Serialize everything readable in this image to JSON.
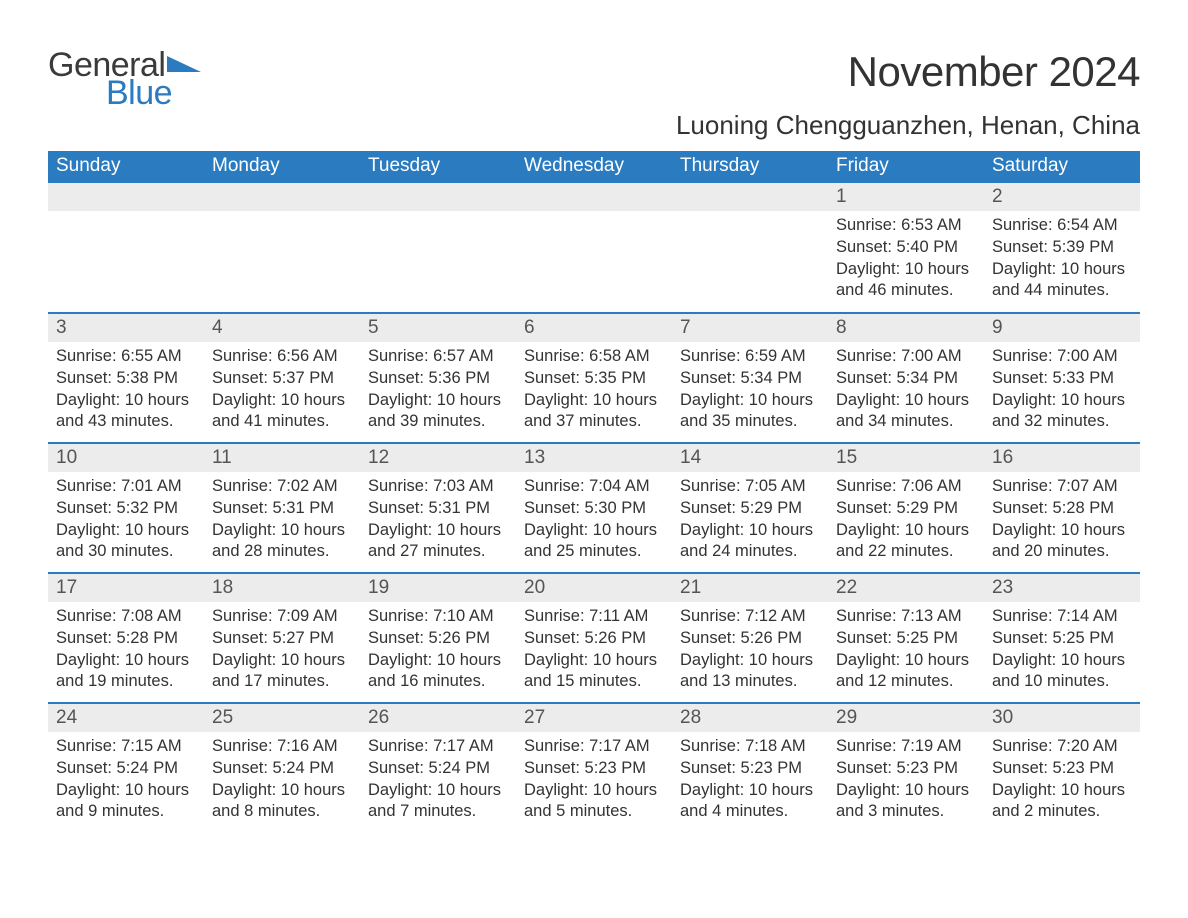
{
  "brand": {
    "part1": "General",
    "part2": "Blue",
    "tri_color": "#2a7bbf"
  },
  "header": {
    "month_title": "November 2024",
    "location": "Luoning Chengguanzhen, Henan, China"
  },
  "colors": {
    "header_bg": "#2a7bbf",
    "header_text": "#ffffff",
    "daynum_bg": "#ececec",
    "daynum_text": "#555555",
    "body_text": "#333333",
    "row_separator": "#2a7bbf",
    "page_bg": "#ffffff"
  },
  "weekdays": [
    "Sunday",
    "Monday",
    "Tuesday",
    "Wednesday",
    "Thursday",
    "Friday",
    "Saturday"
  ],
  "weeks": [
    [
      null,
      null,
      null,
      null,
      null,
      {
        "n": "1",
        "sunrise": "Sunrise: 6:53 AM",
        "sunset": "Sunset: 5:40 PM",
        "daylight": "Daylight: 10 hours and 46 minutes."
      },
      {
        "n": "2",
        "sunrise": "Sunrise: 6:54 AM",
        "sunset": "Sunset: 5:39 PM",
        "daylight": "Daylight: 10 hours and 44 minutes."
      }
    ],
    [
      {
        "n": "3",
        "sunrise": "Sunrise: 6:55 AM",
        "sunset": "Sunset: 5:38 PM",
        "daylight": "Daylight: 10 hours and 43 minutes."
      },
      {
        "n": "4",
        "sunrise": "Sunrise: 6:56 AM",
        "sunset": "Sunset: 5:37 PM",
        "daylight": "Daylight: 10 hours and 41 minutes."
      },
      {
        "n": "5",
        "sunrise": "Sunrise: 6:57 AM",
        "sunset": "Sunset: 5:36 PM",
        "daylight": "Daylight: 10 hours and 39 minutes."
      },
      {
        "n": "6",
        "sunrise": "Sunrise: 6:58 AM",
        "sunset": "Sunset: 5:35 PM",
        "daylight": "Daylight: 10 hours and 37 minutes."
      },
      {
        "n": "7",
        "sunrise": "Sunrise: 6:59 AM",
        "sunset": "Sunset: 5:34 PM",
        "daylight": "Daylight: 10 hours and 35 minutes."
      },
      {
        "n": "8",
        "sunrise": "Sunrise: 7:00 AM",
        "sunset": "Sunset: 5:34 PM",
        "daylight": "Daylight: 10 hours and 34 minutes."
      },
      {
        "n": "9",
        "sunrise": "Sunrise: 7:00 AM",
        "sunset": "Sunset: 5:33 PM",
        "daylight": "Daylight: 10 hours and 32 minutes."
      }
    ],
    [
      {
        "n": "10",
        "sunrise": "Sunrise: 7:01 AM",
        "sunset": "Sunset: 5:32 PM",
        "daylight": "Daylight: 10 hours and 30 minutes."
      },
      {
        "n": "11",
        "sunrise": "Sunrise: 7:02 AM",
        "sunset": "Sunset: 5:31 PM",
        "daylight": "Daylight: 10 hours and 28 minutes."
      },
      {
        "n": "12",
        "sunrise": "Sunrise: 7:03 AM",
        "sunset": "Sunset: 5:31 PM",
        "daylight": "Daylight: 10 hours and 27 minutes."
      },
      {
        "n": "13",
        "sunrise": "Sunrise: 7:04 AM",
        "sunset": "Sunset: 5:30 PM",
        "daylight": "Daylight: 10 hours and 25 minutes."
      },
      {
        "n": "14",
        "sunrise": "Sunrise: 7:05 AM",
        "sunset": "Sunset: 5:29 PM",
        "daylight": "Daylight: 10 hours and 24 minutes."
      },
      {
        "n": "15",
        "sunrise": "Sunrise: 7:06 AM",
        "sunset": "Sunset: 5:29 PM",
        "daylight": "Daylight: 10 hours and 22 minutes."
      },
      {
        "n": "16",
        "sunrise": "Sunrise: 7:07 AM",
        "sunset": "Sunset: 5:28 PM",
        "daylight": "Daylight: 10 hours and 20 minutes."
      }
    ],
    [
      {
        "n": "17",
        "sunrise": "Sunrise: 7:08 AM",
        "sunset": "Sunset: 5:28 PM",
        "daylight": "Daylight: 10 hours and 19 minutes."
      },
      {
        "n": "18",
        "sunrise": "Sunrise: 7:09 AM",
        "sunset": "Sunset: 5:27 PM",
        "daylight": "Daylight: 10 hours and 17 minutes."
      },
      {
        "n": "19",
        "sunrise": "Sunrise: 7:10 AM",
        "sunset": "Sunset: 5:26 PM",
        "daylight": "Daylight: 10 hours and 16 minutes."
      },
      {
        "n": "20",
        "sunrise": "Sunrise: 7:11 AM",
        "sunset": "Sunset: 5:26 PM",
        "daylight": "Daylight: 10 hours and 15 minutes."
      },
      {
        "n": "21",
        "sunrise": "Sunrise: 7:12 AM",
        "sunset": "Sunset: 5:26 PM",
        "daylight": "Daylight: 10 hours and 13 minutes."
      },
      {
        "n": "22",
        "sunrise": "Sunrise: 7:13 AM",
        "sunset": "Sunset: 5:25 PM",
        "daylight": "Daylight: 10 hours and 12 minutes."
      },
      {
        "n": "23",
        "sunrise": "Sunrise: 7:14 AM",
        "sunset": "Sunset: 5:25 PM",
        "daylight": "Daylight: 10 hours and 10 minutes."
      }
    ],
    [
      {
        "n": "24",
        "sunrise": "Sunrise: 7:15 AM",
        "sunset": "Sunset: 5:24 PM",
        "daylight": "Daylight: 10 hours and 9 minutes."
      },
      {
        "n": "25",
        "sunrise": "Sunrise: 7:16 AM",
        "sunset": "Sunset: 5:24 PM",
        "daylight": "Daylight: 10 hours and 8 minutes."
      },
      {
        "n": "26",
        "sunrise": "Sunrise: 7:17 AM",
        "sunset": "Sunset: 5:24 PM",
        "daylight": "Daylight: 10 hours and 7 minutes."
      },
      {
        "n": "27",
        "sunrise": "Sunrise: 7:17 AM",
        "sunset": "Sunset: 5:23 PM",
        "daylight": "Daylight: 10 hours and 5 minutes."
      },
      {
        "n": "28",
        "sunrise": "Sunrise: 7:18 AM",
        "sunset": "Sunset: 5:23 PM",
        "daylight": "Daylight: 10 hours and 4 minutes."
      },
      {
        "n": "29",
        "sunrise": "Sunrise: 7:19 AM",
        "sunset": "Sunset: 5:23 PM",
        "daylight": "Daylight: 10 hours and 3 minutes."
      },
      {
        "n": "30",
        "sunrise": "Sunrise: 7:20 AM",
        "sunset": "Sunset: 5:23 PM",
        "daylight": "Daylight: 10 hours and 2 minutes."
      }
    ]
  ]
}
